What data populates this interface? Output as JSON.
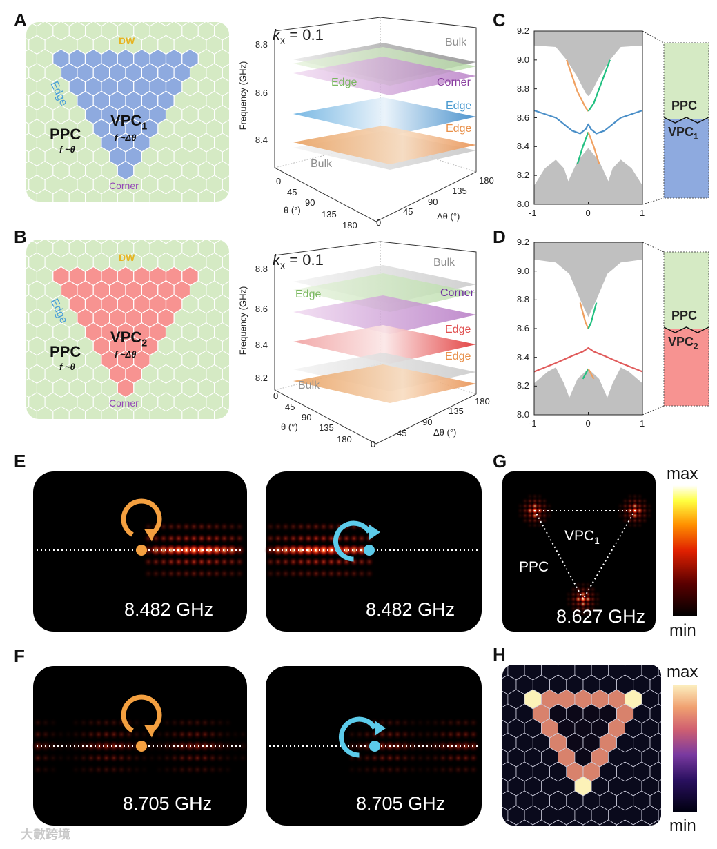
{
  "panels": {
    "A": {
      "letter": "A",
      "dw": "DW",
      "edge": "Edge",
      "ppc": "PPC",
      "ppc_f": "f ~θ",
      "vpc": "VPC",
      "vpc_sub": "1",
      "vpc_f": "f ~Δθ",
      "corner": "Corner"
    },
    "B": {
      "letter": "B",
      "dw": "DW",
      "edge": "Edge",
      "ppc": "PPC",
      "ppc_f": "f ~θ",
      "vpc": "VPC",
      "vpc_sub": "2",
      "vpc_f": "f ~Δθ",
      "corner": "Corner"
    },
    "A3d": {
      "kx": "k",
      "kx_sub": "x",
      "kx_val": " = 0.1",
      "ylabel": "Frequency (GHz)",
      "yticks": [
        "8.8",
        "8.6",
        "8.4"
      ],
      "theta_ticks": [
        "0",
        "45",
        "90",
        "135",
        "180"
      ],
      "dtheta_ticks": [
        "0",
        "45",
        "90",
        "135",
        "180"
      ],
      "theta_label": "θ (°)",
      "dtheta_label": "Δθ (°)",
      "labels": {
        "bulk_top": "Bulk",
        "edge_green": "Edge",
        "corner": "Corner",
        "edge_blue": "Edge",
        "edge_orange": "Edge",
        "bulk_bottom": "Bulk"
      }
    },
    "B3d": {
      "kx": "k",
      "kx_sub": "x",
      "kx_val": " = 0.1",
      "ylabel": "Frequency (GHz)",
      "yticks": [
        "8.8",
        "8.6",
        "8.4",
        "8.2"
      ],
      "theta_ticks": [
        "0",
        "45",
        "90",
        "135",
        "180"
      ],
      "dtheta_ticks": [
        "0",
        "45",
        "90",
        "135",
        "180"
      ],
      "theta_label": "θ (°)",
      "dtheta_label": "Δθ (°)",
      "labels": {
        "bulk_top": "Bulk",
        "edge_green": "Edge",
        "corner": "Corner",
        "edge_red": "Edge",
        "edge_orange": "Edge",
        "bulk_bottom": "Bulk"
      }
    },
    "C": {
      "letter": "C",
      "ppc": "PPC",
      "vpc": "VPC",
      "vpc_sub": "1"
    },
    "D": {
      "letter": "D",
      "ppc": "PPC",
      "vpc": "VPC",
      "vpc_sub": "2"
    },
    "E": {
      "letter": "E",
      "freq_left": "8.482 GHz",
      "freq_right": "8.482 GHz"
    },
    "F": {
      "letter": "F",
      "freq_left": "8.705 GHz",
      "freq_right": "8.705 GHz"
    },
    "G": {
      "letter": "G",
      "ppc": "PPC",
      "vpc": "VPC",
      "vpc_sub": "1",
      "freq": "8.627 GHz",
      "cb_max": "max",
      "cb_min": "min"
    },
    "H": {
      "letter": "H",
      "cb_max": "max",
      "cb_min": "min"
    }
  },
  "colors": {
    "ppc_green": "#d5eac4",
    "vpc1_blue": "#8eaadf",
    "vpc2_red": "#f79391",
    "dw_gold": "#e6b422",
    "edge_blue": "#4a9fd8",
    "corner_purple": "#9448b8",
    "band_blue": "#4a8fc8",
    "band_red": "#e05a5a",
    "band_orange": "#f0a060",
    "band_green": "#20c080",
    "bulk_gray": "#c0c0c0",
    "cw_orange": "#f4a040",
    "ccw_cyan": "#5ccbea"
  },
  "chart_data": [
    {
      "type": "line",
      "panel": "C",
      "xlim": [
        -1,
        1
      ],
      "ylim": [
        8.0,
        9.2
      ],
      "xticks": [
        "-1",
        "0",
        "1"
      ],
      "yticks": [
        "8.0",
        "8.2",
        "8.4",
        "8.6",
        "8.8",
        "9.0",
        "9.2"
      ],
      "bulk_upper": [
        [
          -1,
          9.1
        ],
        [
          -0.6,
          9.09
        ],
        [
          -0.4,
          9.0
        ],
        [
          -0.2,
          8.88
        ],
        [
          -0.05,
          8.77
        ],
        [
          0,
          8.75
        ],
        [
          0.05,
          8.77
        ],
        [
          0.2,
          8.88
        ],
        [
          0.4,
          9.0
        ],
        [
          0.6,
          9.09
        ],
        [
          1,
          9.1
        ]
      ],
      "bulk_lower": [
        [
          -1,
          8.13
        ],
        [
          -0.8,
          8.25
        ],
        [
          -0.6,
          8.31
        ],
        [
          -0.45,
          8.25
        ],
        [
          -0.37,
          8.16
        ],
        [
          -0.2,
          8.3
        ],
        [
          0,
          8.39
        ],
        [
          0.2,
          8.3
        ],
        [
          0.37,
          8.16
        ],
        [
          0.45,
          8.25
        ],
        [
          0.6,
          8.31
        ],
        [
          0.8,
          8.25
        ],
        [
          1,
          8.13
        ]
      ],
      "series": [
        {
          "name": "corner-edge",
          "color": "#4a8fc8",
          "points": [
            [
              -1,
              8.65
            ],
            [
              -0.6,
              8.6
            ],
            [
              -0.3,
              8.51
            ],
            [
              -0.15,
              8.49
            ],
            [
              -0.05,
              8.52
            ],
            [
              0,
              8.555
            ],
            [
              0.05,
              8.52
            ],
            [
              0.15,
              8.49
            ],
            [
              0.3,
              8.51
            ],
            [
              0.6,
              8.6
            ],
            [
              1,
              8.65
            ]
          ]
        },
        {
          "name": "upper-orange",
          "color": "#f0a060",
          "points": [
            [
              -0.4,
              9.0
            ],
            [
              -0.2,
              8.78
            ],
            [
              -0.05,
              8.67
            ],
            [
              0,
              8.645
            ]
          ]
        },
        {
          "name": "upper-green",
          "color": "#20c080",
          "points": [
            [
              0,
              8.645
            ],
            [
              0.1,
              8.7
            ],
            [
              0.25,
              8.85
            ],
            [
              0.4,
              9.0
            ]
          ]
        },
        {
          "name": "lower-green",
          "color": "#20c080",
          "points": [
            [
              -0.2,
              8.28
            ],
            [
              -0.1,
              8.4
            ],
            [
              0,
              8.5
            ]
          ]
        },
        {
          "name": "lower-orange",
          "color": "#f0a060",
          "points": [
            [
              0,
              8.5
            ],
            [
              0.1,
              8.4
            ],
            [
              0.2,
              8.28
            ]
          ]
        }
      ]
    },
    {
      "type": "line",
      "panel": "D",
      "xlim": [
        -1,
        1
      ],
      "ylim": [
        8.0,
        9.2
      ],
      "xticks": [
        "-1",
        "0",
        "1"
      ],
      "yticks": [
        "8.0",
        "8.2",
        "8.4",
        "8.6",
        "8.8",
        "9.0",
        "9.2"
      ],
      "bulk_upper": [
        [
          -1,
          9.08
        ],
        [
          -0.6,
          9.06
        ],
        [
          -0.35,
          8.98
        ],
        [
          -0.15,
          8.8
        ],
        [
          0,
          8.68
        ],
        [
          0.15,
          8.8
        ],
        [
          0.35,
          8.98
        ],
        [
          0.6,
          9.06
        ],
        [
          1,
          9.08
        ]
      ],
      "bulk_lower": [
        [
          -1,
          8.22
        ],
        [
          -0.75,
          8.3
        ],
        [
          -0.6,
          8.33
        ],
        [
          -0.45,
          8.22
        ],
        [
          -0.35,
          8.12
        ],
        [
          -0.2,
          8.25
        ],
        [
          0,
          8.32
        ],
        [
          0.2,
          8.25
        ],
        [
          0.35,
          8.12
        ],
        [
          0.45,
          8.22
        ],
        [
          0.6,
          8.33
        ],
        [
          0.75,
          8.3
        ],
        [
          1,
          8.22
        ]
      ],
      "series": [
        {
          "name": "corner-edge",
          "color": "#e05a5a",
          "points": [
            [
              -1,
              8.3
            ],
            [
              -0.6,
              8.36
            ],
            [
              -0.3,
              8.41
            ],
            [
              -0.1,
              8.44
            ],
            [
              0,
              8.465
            ],
            [
              0.1,
              8.44
            ],
            [
              0.3,
              8.41
            ],
            [
              0.6,
              8.36
            ],
            [
              1,
              8.3
            ]
          ]
        },
        {
          "name": "upper-orange",
          "color": "#f0a060",
          "points": [
            [
              -0.15,
              8.78
            ],
            [
              -0.05,
              8.64
            ],
            [
              0,
              8.6
            ]
          ]
        },
        {
          "name": "upper-green",
          "color": "#20c080",
          "points": [
            [
              0,
              8.6
            ],
            [
              0.05,
              8.64
            ],
            [
              0.15,
              8.78
            ]
          ]
        },
        {
          "name": "lower-green",
          "color": "#20c080",
          "points": [
            [
              -0.1,
              8.25
            ],
            [
              0,
              8.32
            ]
          ]
        },
        {
          "name": "lower-orange",
          "color": "#f0a060",
          "points": [
            [
              0,
              8.32
            ],
            [
              0.1,
              8.25
            ]
          ]
        }
      ]
    }
  ],
  "watermark": "大數跨境"
}
